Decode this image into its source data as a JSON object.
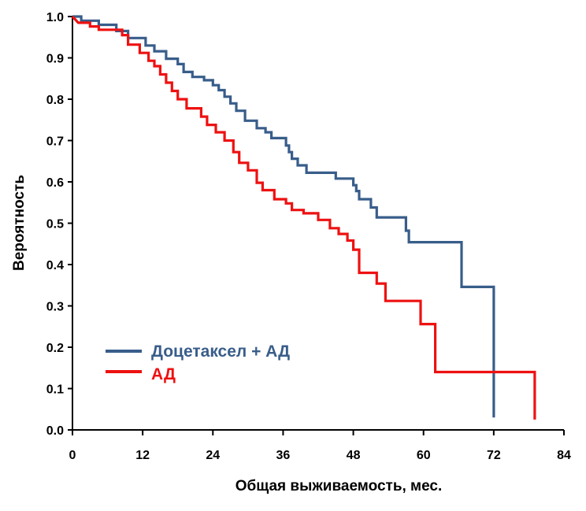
{
  "chart_data": {
    "type": "line",
    "step": true,
    "xlabel": "Общая выживаемость, мес.",
    "ylabel": "Вероятность",
    "xlim": [
      0,
      84
    ],
    "ylim": [
      0,
      1.0
    ],
    "x_ticks": [
      "0",
      "12",
      "24",
      "36",
      "48",
      "60",
      "72",
      "84"
    ],
    "y_ticks": [
      "0.0",
      "0.1",
      "0.2",
      "0.3",
      "0.4",
      "0.5",
      "0.6",
      "0.7",
      "0.8",
      "0.9",
      "1.0"
    ],
    "grid": false,
    "legend_position": "bottom-left",
    "series": [
      {
        "name": "Доцетаксел + АД",
        "color": "#385d8a",
        "points": [
          [
            0,
            1.0
          ],
          [
            1.5,
            1.0
          ],
          [
            1.5,
            0.99
          ],
          [
            4.5,
            0.99
          ],
          [
            4.5,
            0.98
          ],
          [
            7.5,
            0.98
          ],
          [
            7.5,
            0.965
          ],
          [
            9.5,
            0.965
          ],
          [
            9.5,
            0.948
          ],
          [
            12.5,
            0.948
          ],
          [
            12.5,
            0.93
          ],
          [
            14,
            0.93
          ],
          [
            14,
            0.916
          ],
          [
            16,
            0.916
          ],
          [
            16,
            0.898
          ],
          [
            18,
            0.898
          ],
          [
            18,
            0.885
          ],
          [
            19,
            0.885
          ],
          [
            19,
            0.866
          ],
          [
            20.5,
            0.866
          ],
          [
            20.5,
            0.854
          ],
          [
            22.5,
            0.854
          ],
          [
            22.5,
            0.846
          ],
          [
            24,
            0.846
          ],
          [
            24,
            0.834
          ],
          [
            25,
            0.834
          ],
          [
            25,
            0.822
          ],
          [
            26,
            0.822
          ],
          [
            26,
            0.806
          ],
          [
            27,
            0.806
          ],
          [
            27,
            0.79
          ],
          [
            28,
            0.79
          ],
          [
            28,
            0.772
          ],
          [
            29.5,
            0.772
          ],
          [
            29.5,
            0.748
          ],
          [
            31.5,
            0.748
          ],
          [
            31.5,
            0.73
          ],
          [
            33,
            0.73
          ],
          [
            33,
            0.72
          ],
          [
            34,
            0.72
          ],
          [
            34,
            0.706
          ],
          [
            36.5,
            0.706
          ],
          [
            36.5,
            0.688
          ],
          [
            37,
            0.688
          ],
          [
            37,
            0.672
          ],
          [
            37.5,
            0.672
          ],
          [
            37.5,
            0.656
          ],
          [
            38.5,
            0.656
          ],
          [
            38.5,
            0.64
          ],
          [
            40,
            0.64
          ],
          [
            40,
            0.622
          ],
          [
            45,
            0.622
          ],
          [
            45,
            0.608
          ],
          [
            48,
            0.608
          ],
          [
            48,
            0.592
          ],
          [
            48.5,
            0.592
          ],
          [
            48.5,
            0.578
          ],
          [
            49,
            0.578
          ],
          [
            49,
            0.558
          ],
          [
            51,
            0.558
          ],
          [
            51,
            0.538
          ],
          [
            52,
            0.538
          ],
          [
            52,
            0.514
          ],
          [
            57,
            0.514
          ],
          [
            57,
            0.482
          ],
          [
            57.5,
            0.482
          ],
          [
            57.5,
            0.454
          ],
          [
            66.5,
            0.454
          ],
          [
            66.5,
            0.346
          ],
          [
            72,
            0.346
          ],
          [
            72,
            0.03
          ]
        ]
      },
      {
        "name": "АД",
        "color": "#ee1111",
        "points": [
          [
            0,
            1.0
          ],
          [
            1,
            0.985
          ],
          [
            3,
            0.985
          ],
          [
            3,
            0.976
          ],
          [
            4.5,
            0.976
          ],
          [
            4.5,
            0.968
          ],
          [
            8.5,
            0.968
          ],
          [
            8.5,
            0.955
          ],
          [
            9.5,
            0.955
          ],
          [
            9.5,
            0.932
          ],
          [
            11.5,
            0.932
          ],
          [
            11.5,
            0.912
          ],
          [
            13,
            0.912
          ],
          [
            13,
            0.893
          ],
          [
            14,
            0.893
          ],
          [
            14,
            0.88
          ],
          [
            15,
            0.88
          ],
          [
            15,
            0.86
          ],
          [
            16,
            0.86
          ],
          [
            16,
            0.84
          ],
          [
            17,
            0.84
          ],
          [
            17,
            0.82
          ],
          [
            18,
            0.82
          ],
          [
            18,
            0.8
          ],
          [
            19.5,
            0.8
          ],
          [
            19.5,
            0.778
          ],
          [
            22,
            0.778
          ],
          [
            22,
            0.758
          ],
          [
            23,
            0.758
          ],
          [
            23,
            0.738
          ],
          [
            24.5,
            0.738
          ],
          [
            24.5,
            0.72
          ],
          [
            26,
            0.72
          ],
          [
            26,
            0.7
          ],
          [
            27.5,
            0.7
          ],
          [
            27.5,
            0.672
          ],
          [
            28.5,
            0.672
          ],
          [
            28.5,
            0.646
          ],
          [
            30,
            0.646
          ],
          [
            30,
            0.628
          ],
          [
            31.5,
            0.628
          ],
          [
            31.5,
            0.598
          ],
          [
            32.5,
            0.598
          ],
          [
            32.5,
            0.58
          ],
          [
            34.5,
            0.58
          ],
          [
            34.5,
            0.558
          ],
          [
            36.5,
            0.558
          ],
          [
            36.5,
            0.548
          ],
          [
            37.5,
            0.548
          ],
          [
            37.5,
            0.532
          ],
          [
            39.5,
            0.532
          ],
          [
            39.5,
            0.524
          ],
          [
            42,
            0.524
          ],
          [
            42,
            0.508
          ],
          [
            44,
            0.508
          ],
          [
            44,
            0.488
          ],
          [
            45.5,
            0.488
          ],
          [
            45.5,
            0.474
          ],
          [
            47,
            0.474
          ],
          [
            47,
            0.458
          ],
          [
            48,
            0.458
          ],
          [
            48,
            0.436
          ],
          [
            49,
            0.436
          ],
          [
            49,
            0.38
          ],
          [
            52,
            0.38
          ],
          [
            52,
            0.354
          ],
          [
            53.5,
            0.354
          ],
          [
            53.5,
            0.312
          ],
          [
            59.5,
            0.312
          ],
          [
            59.5,
            0.256
          ],
          [
            62,
            0.256
          ],
          [
            62,
            0.14
          ],
          [
            79,
            0.14
          ],
          [
            79,
            0.025
          ]
        ]
      }
    ]
  }
}
